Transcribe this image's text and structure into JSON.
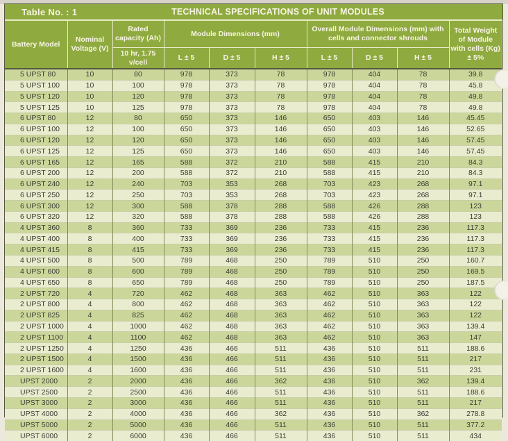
{
  "page": {
    "table_label": "Table No. : 1",
    "title": "TECHNICAL SPECIFICATIONS OF UNIT MODULES"
  },
  "table": {
    "headers": {
      "battery_model": "Battery Model",
      "nominal_voltage": "Nominal Voltage (V)",
      "rated_capacity": "Rated capacity (Ah)",
      "rated_capacity_sub": "10 hr, 1.75 v/cell",
      "module_dims_group": "Module Dimensions (mm)",
      "overall_dims_group": "Overall Module Dimensions (mm) with cells and connector shrouds",
      "dim_l": "L ± 5",
      "dim_d": "D ± 5",
      "dim_h": "H ± 5",
      "total_weight": "Total Weight of Module with cells (Kg) ± 5%"
    },
    "rows": [
      [
        "5 UPST 80",
        "10",
        "80",
        "978",
        "373",
        "78",
        "978",
        "404",
        "78",
        "39.8"
      ],
      [
        "5 UPST 100",
        "10",
        "100",
        "978",
        "373",
        "78",
        "978",
        "404",
        "78",
        "45.8"
      ],
      [
        "5 UPST 120",
        "10",
        "120",
        "978",
        "373",
        "78",
        "978",
        "404",
        "78",
        "49.8"
      ],
      [
        "5 UPST 125",
        "10",
        "125",
        "978",
        "373",
        "78",
        "978",
        "404",
        "78",
        "49.8"
      ],
      [
        "6 UPST 80",
        "12",
        "80",
        "650",
        "373",
        "146",
        "650",
        "403",
        "146",
        "45.45"
      ],
      [
        "6 UPST 100",
        "12",
        "100",
        "650",
        "373",
        "146",
        "650",
        "403",
        "146",
        "52.65"
      ],
      [
        "6 UPST 120",
        "12",
        "120",
        "650",
        "373",
        "146",
        "650",
        "403",
        "146",
        "57.45"
      ],
      [
        "6 UPST 125",
        "12",
        "125",
        "650",
        "373",
        "146",
        "650",
        "403",
        "146",
        "57.45"
      ],
      [
        "6 UPST 165",
        "12",
        "165",
        "588",
        "372",
        "210",
        "588",
        "415",
        "210",
        "84.3"
      ],
      [
        "6 UPST 200",
        "12",
        "200",
        "588",
        "372",
        "210",
        "588",
        "415",
        "210",
        "84.3"
      ],
      [
        "6 UPST 240",
        "12",
        "240",
        "703",
        "353",
        "268",
        "703",
        "423",
        "268",
        "97.1"
      ],
      [
        "6 UPST 250",
        "12",
        "250",
        "703",
        "353",
        "268",
        "703",
        "423",
        "268",
        "97.1"
      ],
      [
        "6 UPST 300",
        "12",
        "300",
        "588",
        "378",
        "288",
        "588",
        "426",
        "288",
        "123"
      ],
      [
        "6 UPST 320",
        "12",
        "320",
        "588",
        "378",
        "288",
        "588",
        "426",
        "288",
        "123"
      ],
      [
        "4 UPST 360",
        "8",
        "360",
        "733",
        "369",
        "236",
        "733",
        "415",
        "236",
        "117.3"
      ],
      [
        "4 UPST 400",
        "8",
        "400",
        "733",
        "369",
        "236",
        "733",
        "415",
        "236",
        "117.3"
      ],
      [
        "4 UPST 415",
        "8",
        "415",
        "733",
        "369",
        "236",
        "733",
        "415",
        "236",
        "117.3"
      ],
      [
        "4 UPST 500",
        "8",
        "500",
        "789",
        "468",
        "250",
        "789",
        "510",
        "250",
        "160.7"
      ],
      [
        "4 UPST 600",
        "8",
        "600",
        "789",
        "468",
        "250",
        "789",
        "510",
        "250",
        "169.5"
      ],
      [
        "4 UPST 650",
        "8",
        "650",
        "789",
        "468",
        "250",
        "789",
        "510",
        "250",
        "187.5"
      ],
      [
        "2 UPST 720",
        "4",
        "720",
        "462",
        "468",
        "363",
        "462",
        "510",
        "363",
        "122"
      ],
      [
        "2 UPST 800",
        "4",
        "800",
        "462",
        "468",
        "363",
        "462",
        "510",
        "363",
        "122"
      ],
      [
        "2 UPST 825",
        "4",
        "825",
        "462",
        "468",
        "363",
        "462",
        "510",
        "363",
        "122"
      ],
      [
        "2 UPST 1000",
        "4",
        "1000",
        "462",
        "468",
        "363",
        "462",
        "510",
        "363",
        "139.4"
      ],
      [
        "2 UPST 1100",
        "4",
        "1100",
        "462",
        "468",
        "363",
        "462",
        "510",
        "363",
        "147"
      ],
      [
        "2 UPST 1250",
        "4",
        "1250",
        "436",
        "466",
        "511",
        "436",
        "510",
        "511",
        "188.6"
      ],
      [
        "2 UPST 1500",
        "4",
        "1500",
        "436",
        "466",
        "511",
        "436",
        "510",
        "511",
        "217"
      ],
      [
        "2 UPST 1600",
        "4",
        "1600",
        "436",
        "466",
        "511",
        "436",
        "510",
        "511",
        "231"
      ],
      [
        "UPST 2000",
        "2",
        "2000",
        "436",
        "466",
        "362",
        "436",
        "510",
        "362",
        "139.4"
      ],
      [
        "UPST 2500",
        "2",
        "2500",
        "436",
        "466",
        "511",
        "436",
        "510",
        "511",
        "188.6"
      ],
      [
        "UPST 3000",
        "2",
        "3000",
        "436",
        "466",
        "511",
        "436",
        "510",
        "511",
        "217"
      ],
      [
        "UPST 4000",
        "2",
        "4000",
        "436",
        "466",
        "362",
        "436",
        "510",
        "362",
        "278.8"
      ],
      [
        "UPST 5000",
        "2",
        "5000",
        "436",
        "466",
        "511",
        "436",
        "510",
        "511",
        "377.2"
      ],
      [
        "UPST 6000",
        "2",
        "6000",
        "436",
        "466",
        "511",
        "436",
        "510",
        "511",
        "434"
      ]
    ]
  },
  "colors": {
    "header_green": "#8FAA3F",
    "row_dark": "#CBD79A",
    "row_light": "#E9ECCE",
    "header_text": "#F7F4E3",
    "body_text": "#3B3B33",
    "outer_border": "#54563F"
  }
}
